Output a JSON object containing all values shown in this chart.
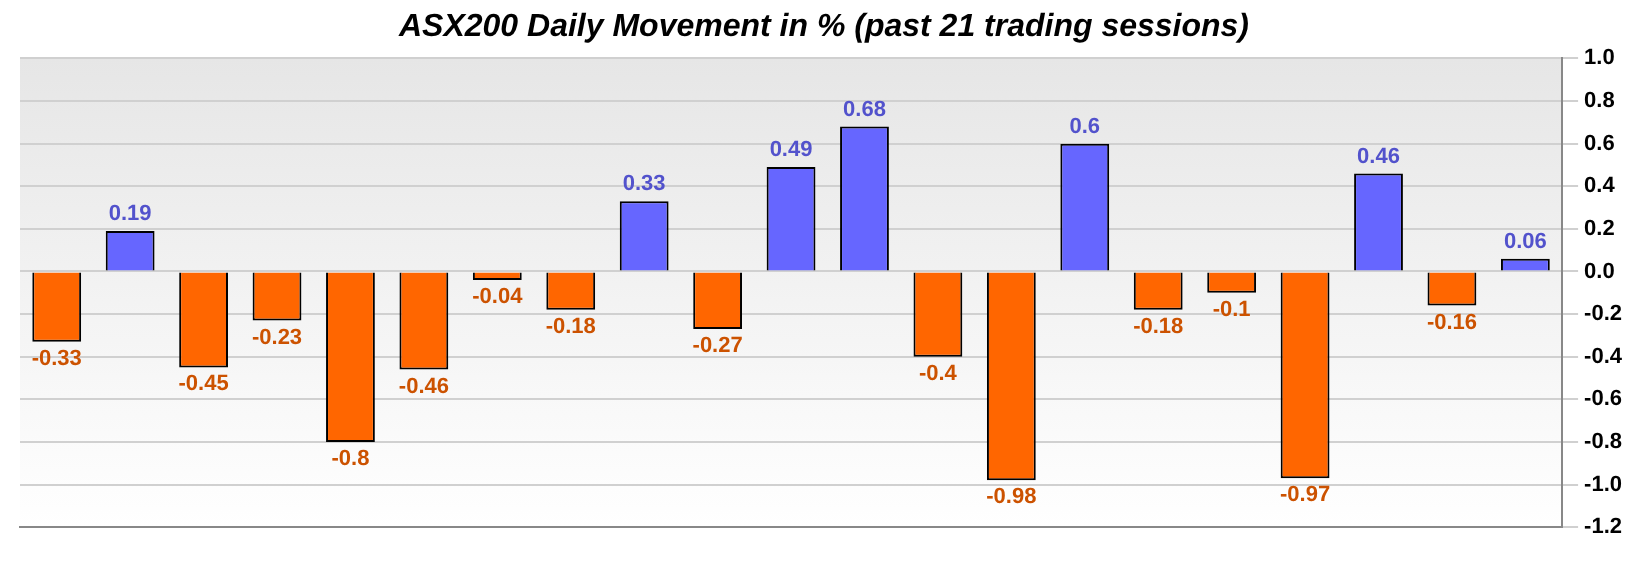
{
  "chart_data": {
    "type": "bar",
    "title": "ASX200 Daily Movement in % (past 21 trading sessions)",
    "categories": [
      null,
      null,
      null,
      null,
      null,
      null,
      null,
      null,
      null,
      null,
      null,
      null,
      null,
      null,
      null,
      null,
      null,
      null,
      null,
      null,
      null
    ],
    "values": [
      -0.33,
      0.19,
      -0.45,
      -0.23,
      -0.8,
      -0.46,
      -0.04,
      -0.18,
      0.33,
      -0.27,
      0.49,
      0.68,
      -0.4,
      -0.98,
      0.6,
      -0.18,
      -0.1,
      -0.97,
      0.46,
      -0.16,
      0.06
    ],
    "colors": [
      "#ff6600",
      "#6666ff",
      "#ff6600",
      "#ff6600",
      "#ff6600",
      "#ff6600",
      "#ff6600",
      "#ff6600",
      "#6666ff",
      "#ff6600",
      "#6666ff",
      "#6666ff",
      "#ff6600",
      "#ff6600",
      "#6666ff",
      "#ff6600",
      "#ff6600",
      "#ff6600",
      "#6666ff",
      "#ff6600",
      "#6666ff"
    ],
    "ylim": [
      -1.2,
      1.0
    ],
    "yticks": [
      {
        "value": -1.2,
        "label": "-1.2"
      },
      {
        "value": -1,
        "label": "-1.0"
      },
      {
        "value": -0.8,
        "label": "-0.8"
      },
      {
        "value": -0.6,
        "label": "-0.6"
      },
      {
        "value": -0.4,
        "label": "-0.4"
      },
      {
        "value": -0.2,
        "label": "-0.2"
      },
      {
        "value": 0,
        "label": "0.0"
      },
      {
        "value": 0.2,
        "label": "0.2"
      },
      {
        "value": 0.4,
        "label": "0.4"
      },
      {
        "value": 0.6,
        "label": "0.6"
      },
      {
        "value": 0.8,
        "label": "0.8"
      },
      {
        "value": 1,
        "label": "1.0"
      }
    ],
    "grid": "y",
    "data_labels": true,
    "legend": false
  }
}
